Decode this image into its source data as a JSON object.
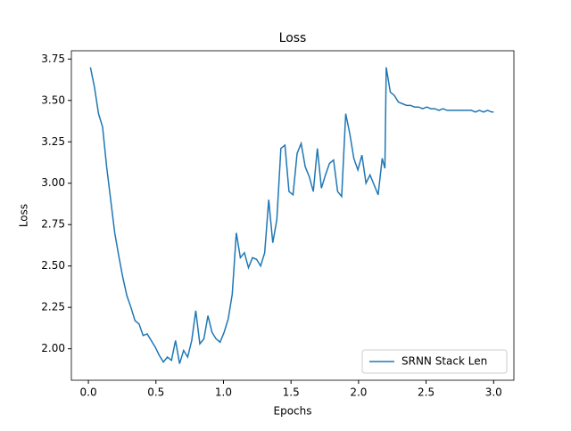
{
  "chart_data": {
    "type": "line",
    "title": "Loss",
    "x_label": "Epochs",
    "y_label": "Loss",
    "x": [
      0.015,
      0.045,
      0.075,
      0.105,
      0.135,
      0.165,
      0.195,
      0.225,
      0.255,
      0.285,
      0.315,
      0.345,
      0.375,
      0.405,
      0.435,
      0.465,
      0.495,
      0.525,
      0.555,
      0.585,
      0.615,
      0.645,
      0.675,
      0.705,
      0.735,
      0.765,
      0.795,
      0.825,
      0.855,
      0.885,
      0.915,
      0.945,
      0.975,
      1.005,
      1.035,
      1.065,
      1.095,
      1.125,
      1.155,
      1.185,
      1.215,
      1.245,
      1.275,
      1.305,
      1.335,
      1.365,
      1.395,
      1.425,
      1.455,
      1.485,
      1.515,
      1.545,
      1.575,
      1.605,
      1.635,
      1.665,
      1.695,
      1.725,
      1.755,
      1.785,
      1.815,
      1.845,
      1.875,
      1.905,
      1.935,
      1.965,
      1.995,
      2.025,
      2.055,
      2.085,
      2.115,
      2.145,
      2.175,
      2.195,
      2.205,
      2.235,
      2.265,
      2.295,
      2.325,
      2.355,
      2.385,
      2.415,
      2.445,
      2.475,
      2.505,
      2.535,
      2.565,
      2.595,
      2.625,
      2.655,
      2.685,
      2.715,
      2.745,
      2.775,
      2.805,
      2.835,
      2.865,
      2.895,
      2.925,
      2.955,
      2.985,
      3.0
    ],
    "series": [
      {
        "name": "SRNN Stack Len",
        "color": "#1f77b4",
        "values": [
          3.7,
          3.58,
          3.42,
          3.34,
          3.1,
          2.9,
          2.7,
          2.56,
          2.43,
          2.32,
          2.25,
          2.17,
          2.15,
          2.08,
          2.09,
          2.05,
          2.01,
          1.96,
          1.92,
          1.95,
          1.93,
          2.05,
          1.91,
          1.99,
          1.95,
          2.05,
          2.23,
          2.03,
          2.06,
          2.2,
          2.1,
          2.06,
          2.04,
          2.1,
          2.18,
          2.33,
          2.7,
          2.55,
          2.58,
          2.49,
          2.55,
          2.54,
          2.5,
          2.58,
          2.9,
          2.64,
          2.78,
          3.21,
          3.23,
          2.95,
          2.93,
          3.18,
          3.24,
          3.1,
          3.04,
          2.95,
          3.21,
          2.97,
          3.05,
          3.12,
          3.14,
          2.95,
          2.92,
          3.42,
          3.3,
          3.15,
          3.08,
          3.17,
          3.0,
          3.05,
          2.99,
          2.93,
          3.15,
          3.09,
          3.7,
          3.55,
          3.53,
          3.49,
          3.48,
          3.47,
          3.47,
          3.46,
          3.46,
          3.45,
          3.46,
          3.45,
          3.45,
          3.44,
          3.45,
          3.44,
          3.44,
          3.44,
          3.44,
          3.44,
          3.44,
          3.44,
          3.43,
          3.44,
          3.43,
          3.44,
          3.43,
          3.43
        ]
      }
    ],
    "xlim": [
      -0.126,
      3.15
    ],
    "ylim": [
      1.81,
      3.8
    ],
    "xticks": [
      {
        "value": 0,
        "label": "0.0"
      },
      {
        "value": 0.5,
        "label": "0.5"
      },
      {
        "value": 1,
        "label": "1.0"
      },
      {
        "value": 1.5,
        "label": "1.5"
      },
      {
        "value": 2,
        "label": "2.0"
      },
      {
        "value": 2.5,
        "label": "2.5"
      },
      {
        "value": 3,
        "label": "3.0"
      }
    ],
    "yticks": [
      {
        "value": 2,
        "label": "2.00"
      },
      {
        "value": 2.25,
        "label": "2.25"
      },
      {
        "value": 2.5,
        "label": "2.50"
      },
      {
        "value": 2.75,
        "label": "2.75"
      },
      {
        "value": 3,
        "label": "3.00"
      },
      {
        "value": 3.25,
        "label": "3.25"
      },
      {
        "value": 3.5,
        "label": "3.50"
      },
      {
        "value": 3.75,
        "label": "3.75"
      }
    ],
    "legend": "lower right"
  }
}
